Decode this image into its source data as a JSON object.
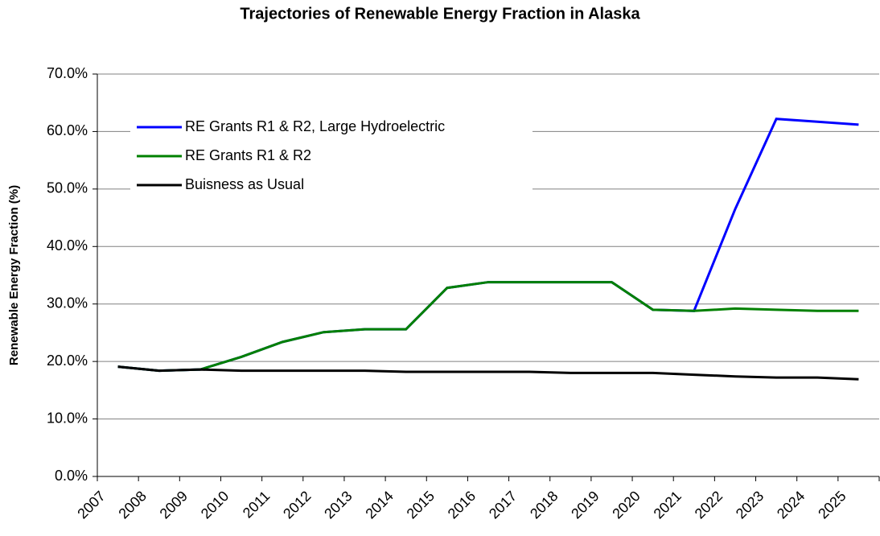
{
  "chart_data": {
    "type": "line",
    "title": "Trajectories of Renewable Energy Fraction in Alaska",
    "y_label": "Renewable Energy Fraction (%)",
    "categories": [
      "2007",
      "2008",
      "2009",
      "2010",
      "2011",
      "2012",
      "2013",
      "2014",
      "2015",
      "2016",
      "2017",
      "2018",
      "2019",
      "2020",
      "2021",
      "2022",
      "2023",
      "2024",
      "2025"
    ],
    "series": [
      {
        "name": "RE Grants R1 & R2, Large Hydroelectric",
        "color": "#0000ff",
        "values": [
          19.1,
          18.4,
          18.6,
          20.8,
          23.4,
          25.1,
          25.6,
          25.6,
          32.8,
          33.8,
          33.8,
          33.8,
          33.8,
          29.0,
          28.8,
          46.5,
          62.2,
          61.7,
          61.2
        ]
      },
      {
        "name": "RE Grants R1 & R2",
        "color": "#008000",
        "values": [
          19.1,
          18.4,
          18.6,
          20.8,
          23.4,
          25.1,
          25.6,
          25.6,
          32.8,
          33.8,
          33.8,
          33.8,
          33.8,
          29.0,
          28.8,
          29.2,
          29.0,
          28.8,
          28.8
        ]
      },
      {
        "name": "Buisness as Usual",
        "color": "#000000",
        "values": [
          19.1,
          18.4,
          18.6,
          18.4,
          18.4,
          18.4,
          18.4,
          18.2,
          18.2,
          18.2,
          18.2,
          18.0,
          18.0,
          18.0,
          17.7,
          17.4,
          17.2,
          17.2,
          16.9
        ]
      }
    ],
    "ylim": [
      0,
      70
    ],
    "yticks": [
      {
        "value": 0,
        "label": "0.0%"
      },
      {
        "value": 10,
        "label": "10.0%"
      },
      {
        "value": 20,
        "label": "20.0%"
      },
      {
        "value": 30,
        "label": "30.0%"
      },
      {
        "value": 40,
        "label": "40.0%"
      },
      {
        "value": 50,
        "label": "50.0%"
      },
      {
        "value": 60,
        "label": "60.0%"
      },
      {
        "value": 70,
        "label": "70.0%"
      }
    ],
    "grid": true,
    "legend": "upper-left"
  }
}
